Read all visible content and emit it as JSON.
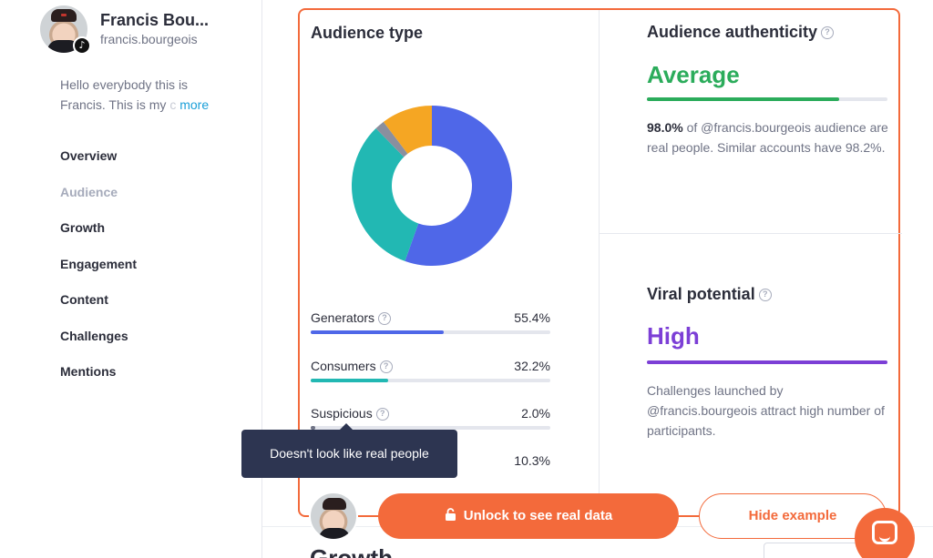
{
  "profile": {
    "name": "Francis Bou...",
    "handle": "francis.bourgeois",
    "bio_line1": "Hello everybody this is",
    "bio_line2": "Francis. This is my",
    "bio_faded": "c",
    "bio_more": "more",
    "platform_icon": "tiktok-icon"
  },
  "nav": {
    "items": [
      {
        "label": "Overview"
      },
      {
        "label": "Audience"
      },
      {
        "label": "Growth"
      },
      {
        "label": "Engagement"
      },
      {
        "label": "Content"
      },
      {
        "label": "Challenges"
      },
      {
        "label": "Mentions"
      }
    ],
    "active": "Audience"
  },
  "audience_type": {
    "title": "Audience type",
    "chart_data": {
      "type": "pie",
      "title": "Audience type",
      "categories": [
        "Generators",
        "Consumers",
        "Suspicious",
        ""
      ],
      "values": [
        55.4,
        32.2,
        2.0,
        10.3
      ],
      "colors": [
        "#4f67e8",
        "#22b8b3",
        "#8a8f9e",
        "#f5a623"
      ]
    },
    "rows": [
      {
        "label": "Generators",
        "pct": "55.4%",
        "value": 55.4,
        "color": "#4f67e8"
      },
      {
        "label": "Consumers",
        "pct": "32.2%",
        "value": 32.2,
        "color": "#22b8b3"
      },
      {
        "label": "Suspicious",
        "pct": "2.0%",
        "value": 2.0,
        "color": "#6f7385"
      },
      {
        "label": "",
        "pct": "10.3%",
        "value": 10.3,
        "color": "#f5a623"
      }
    ]
  },
  "authenticity": {
    "title": "Audience authenticity",
    "rating": "Average",
    "rating_color": "#2bac5b",
    "level": 0.8,
    "desc_bold": "98.0%",
    "desc_rest": " of @francis.bourgeois audience are real people. Similar accounts have 98.2%."
  },
  "viral": {
    "title": "Viral potential",
    "rating": "High",
    "rating_color": "#7c3fd6",
    "level": 1.0,
    "desc": "Challenges launched by @francis.bourgeois attract high number of participants."
  },
  "tooltip": "Doesn't look like real people",
  "actions": {
    "unlock": "Unlock to see real data",
    "hide": "Hide example"
  },
  "accent_color": "#f36a3b",
  "below_heading": "Growth"
}
